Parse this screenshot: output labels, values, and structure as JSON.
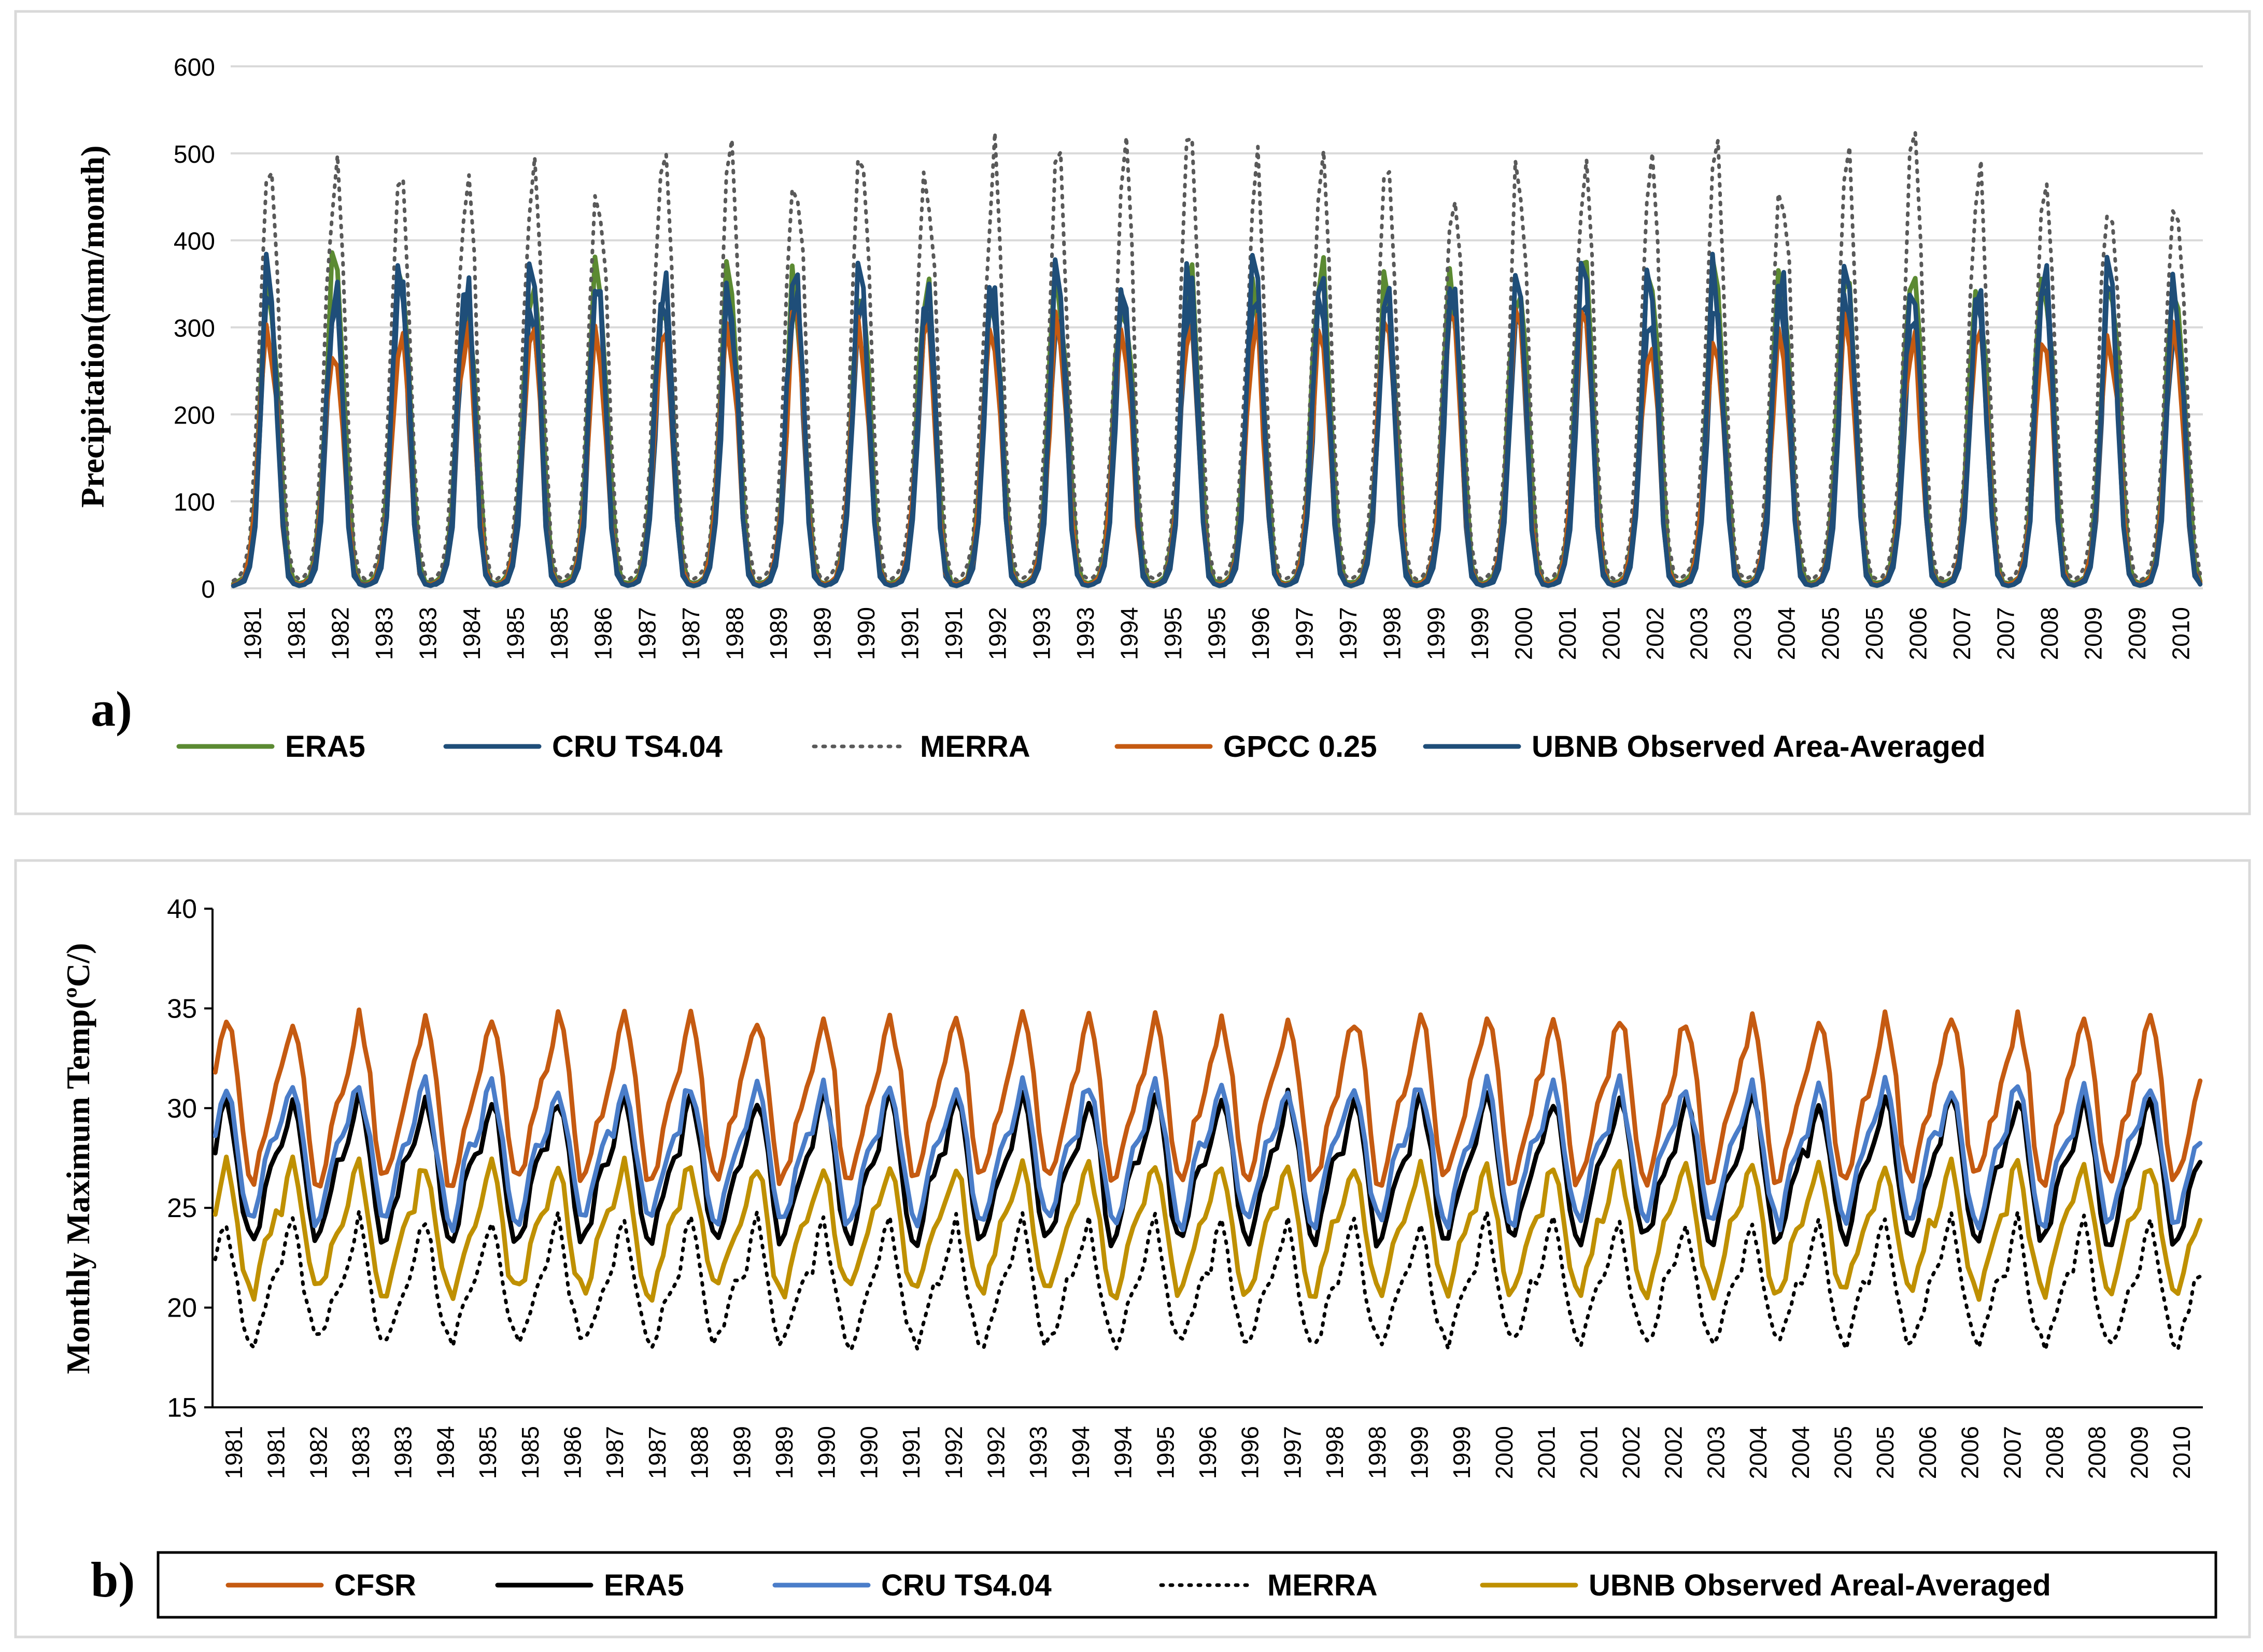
{
  "chart_data": [
    {
      "panel_label": "a)",
      "type": "line",
      "ylabel": "Precipitation(mm/month)",
      "ylim": [
        0,
        600
      ],
      "yticks": [
        0,
        100,
        200,
        300,
        400,
        500,
        600
      ],
      "grid": "horizontal",
      "x_tick_labels": [
        "1981",
        "1981",
        "1982",
        "1983",
        "1983",
        "1984",
        "1985",
        "1985",
        "1986",
        "1987",
        "1987",
        "1988",
        "1989",
        "1989",
        "1990",
        "1991",
        "1991",
        "1992",
        "1993",
        "1993",
        "1994",
        "1995",
        "1995",
        "1996",
        "1997",
        "1997",
        "1998",
        "1999",
        "1999",
        "2000",
        "2001",
        "2001",
        "2002",
        "2003",
        "2003",
        "2004",
        "2005",
        "2005",
        "2006",
        "2007",
        "2007",
        "2008",
        "2009",
        "2009",
        "2010"
      ],
      "x_start": "1981-01",
      "months": 360,
      "legend_position": "bottom",
      "series": [
        {
          "name": "ERA5",
          "color": "#5b8a32",
          "style": "solid",
          "monthly_climatology": [
            6,
            8,
            14,
            40,
            110,
            240,
            345,
            340,
            250,
            120,
            30,
            8
          ]
        },
        {
          "name": "CRU TS4.04",
          "color": "#1f4e79",
          "style": "solid",
          "monthly_climatology": [
            4,
            5,
            8,
            25,
            75,
            190,
            315,
            325,
            215,
            80,
            15,
            5
          ]
        },
        {
          "name": "MERRA",
          "color": "#595959",
          "style": "dotted",
          "monthly_climatology": [
            10,
            14,
            25,
            60,
            150,
            320,
            460,
            470,
            360,
            170,
            50,
            15
          ]
        },
        {
          "name": "GPCC 0.25",
          "color": "#c55a11",
          "style": "solid",
          "monthly_climatology": [
            4,
            6,
            12,
            35,
            95,
            200,
            290,
            285,
            195,
            80,
            20,
            6
          ]
        },
        {
          "name": "UBNB Observed Area-Averaged",
          "color": "#1f4e79",
          "style": "solid",
          "monthly_climatology": [
            3,
            5,
            10,
            30,
            85,
            215,
            345,
            335,
            220,
            75,
            18,
            5
          ]
        }
      ]
    },
    {
      "panel_label": "b)",
      "type": "line",
      "ylabel": "Monthly Maximum Temp(ºC/)",
      "ylim": [
        15,
        40
      ],
      "yticks": [
        15,
        20,
        25,
        30,
        35,
        40
      ],
      "grid": "none",
      "x_tick_labels": [
        "1981",
        "1981",
        "1982",
        "1983",
        "1983",
        "1984",
        "1985",
        "1985",
        "1986",
        "1987",
        "1987",
        "1988",
        "1989",
        "1989",
        "1990",
        "1990",
        "1991",
        "1992",
        "1992",
        "1993",
        "1994",
        "1994",
        "1995",
        "1996",
        "1996",
        "1997",
        "1998",
        "1998",
        "1999",
        "1999",
        "2000",
        "2001",
        "2001",
        "2002",
        "2002",
        "2003",
        "2004",
        "2004",
        "2005",
        "2005",
        "2006",
        "2006",
        "2007",
        "2008",
        "2008",
        "2009",
        "2010"
      ],
      "x_start": "1981-01",
      "months": 360,
      "legend_position": "bottom",
      "series": [
        {
          "name": "CFSR",
          "color": "#c55a11",
          "style": "solid",
          "monthly_climatology": [
            32,
            33.5,
            34.5,
            33.5,
            31.5,
            28.5,
            26.5,
            26.5,
            27.5,
            29,
            30,
            31
          ]
        },
        {
          "name": "ERA5",
          "color": "#000000",
          "style": "solid",
          "monthly_climatology": [
            28,
            29.5,
            30.5,
            29.5,
            27.5,
            25,
            23.5,
            23.5,
            24.5,
            26,
            27,
            27.5
          ]
        },
        {
          "name": "CRU TS4.04",
          "color": "#4a7dc9",
          "style": "solid",
          "monthly_climatology": [
            29,
            30.5,
            31.2,
            30,
            28.2,
            26,
            24.5,
            24.2,
            25.5,
            27,
            28,
            28.5
          ]
        },
        {
          "name": "MERRA",
          "color": "#000000",
          "style": "dotted",
          "monthly_climatology": [
            22,
            23.5,
            24.5,
            23,
            21,
            19.5,
            18.5,
            18.3,
            19,
            20,
            21,
            21.5
          ]
        },
        {
          "name": "UBNB Observed Areal-Averaged",
          "color": "#bf9000",
          "style": "solid",
          "monthly_climatology": [
            25,
            26.5,
            27.2,
            26,
            24,
            22,
            21,
            20.8,
            21.8,
            23,
            24,
            24.5
          ]
        }
      ]
    }
  ]
}
